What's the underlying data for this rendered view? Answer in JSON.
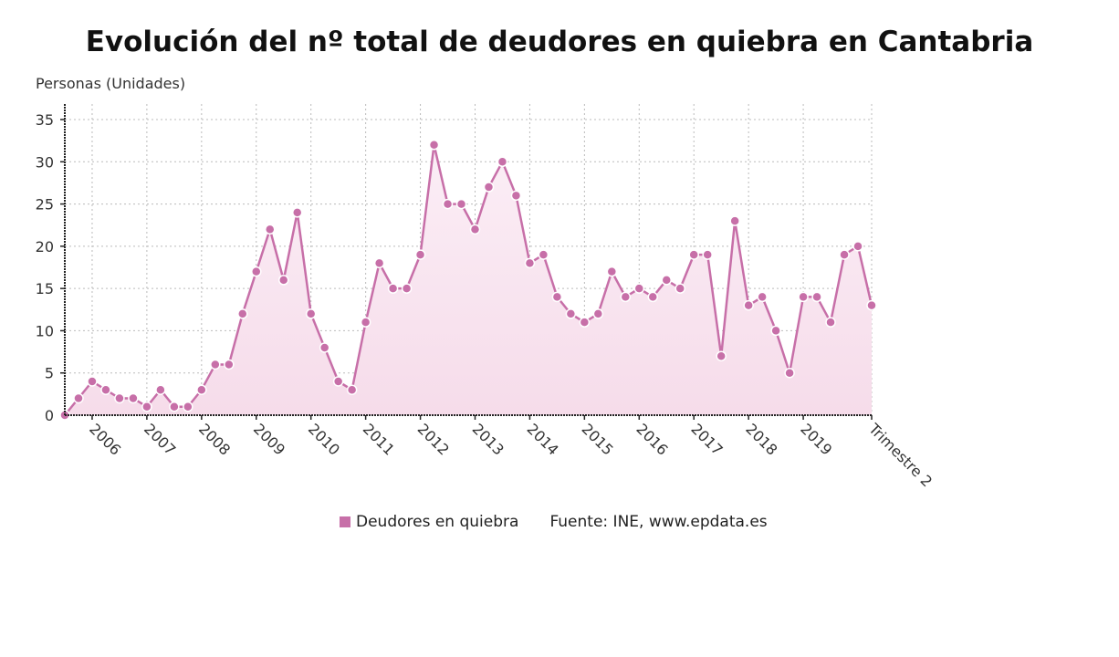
{
  "chart_data": {
    "type": "area",
    "title": "Evolución del nº total de deudores en quiebra en Cantabria",
    "ylabel": "Personas (Unidades)",
    "xlabel": "",
    "ylim": [
      0,
      35
    ],
    "yticks": [
      0,
      5,
      10,
      15,
      20,
      25,
      30,
      35
    ],
    "grid": true,
    "legend_position": "bottom",
    "x_tick_labels": [
      "2006",
      "2007",
      "2008",
      "2009",
      "2010",
      "2011",
      "2012",
      "2013",
      "2014",
      "2015",
      "2016",
      "2017",
      "2018",
      "2019",
      "Trimestre 2"
    ],
    "x_tick_indices": [
      2,
      6,
      10,
      14,
      18,
      22,
      26,
      30,
      34,
      38,
      42,
      46,
      50,
      54,
      59
    ],
    "x": [
      "2005T3",
      "2005T4",
      "2006T1",
      "2006T2",
      "2006T3",
      "2006T4",
      "2007T1",
      "2007T2",
      "2007T3",
      "2007T4",
      "2008T1",
      "2008T2",
      "2008T3",
      "2008T4",
      "2009T1",
      "2009T2",
      "2009T3",
      "2009T4",
      "2010T1",
      "2010T2",
      "2010T3",
      "2010T4",
      "2011T1",
      "2011T2",
      "2011T3",
      "2011T4",
      "2012T1",
      "2012T2",
      "2012T3",
      "2012T4",
      "2013T1",
      "2013T2",
      "2013T3",
      "2013T4",
      "2014T1",
      "2014T2",
      "2014T3",
      "2014T4",
      "2015T1",
      "2015T2",
      "2015T3",
      "2015T4",
      "2016T1",
      "2016T2",
      "2016T3",
      "2016T4",
      "2017T1",
      "2017T2",
      "2017T3",
      "2017T4",
      "2018T1",
      "2018T2",
      "2018T3",
      "2018T4",
      "2019T1",
      "2019T2",
      "2019T3",
      "2019T4",
      "2020T1",
      "2020T2"
    ],
    "series": [
      {
        "name": "Deudores en quiebra",
        "color": "#c76fa8",
        "values": [
          0,
          2,
          4,
          3,
          2,
          2,
          1,
          3,
          1,
          1,
          3,
          6,
          6,
          12,
          17,
          22,
          16,
          24,
          12,
          8,
          4,
          3,
          11,
          18,
          15,
          15,
          19,
          32,
          25,
          25,
          22,
          27,
          30,
          26,
          18,
          19,
          14,
          12,
          11,
          12,
          17,
          14,
          15,
          14,
          16,
          15,
          19,
          19,
          7,
          23,
          13,
          14,
          10,
          5,
          14,
          14,
          11,
          19,
          20,
          13
        ]
      }
    ]
  },
  "legend": {
    "series_label": "Deudores en quiebra",
    "source": "Fuente: INE, www.epdata.es"
  }
}
